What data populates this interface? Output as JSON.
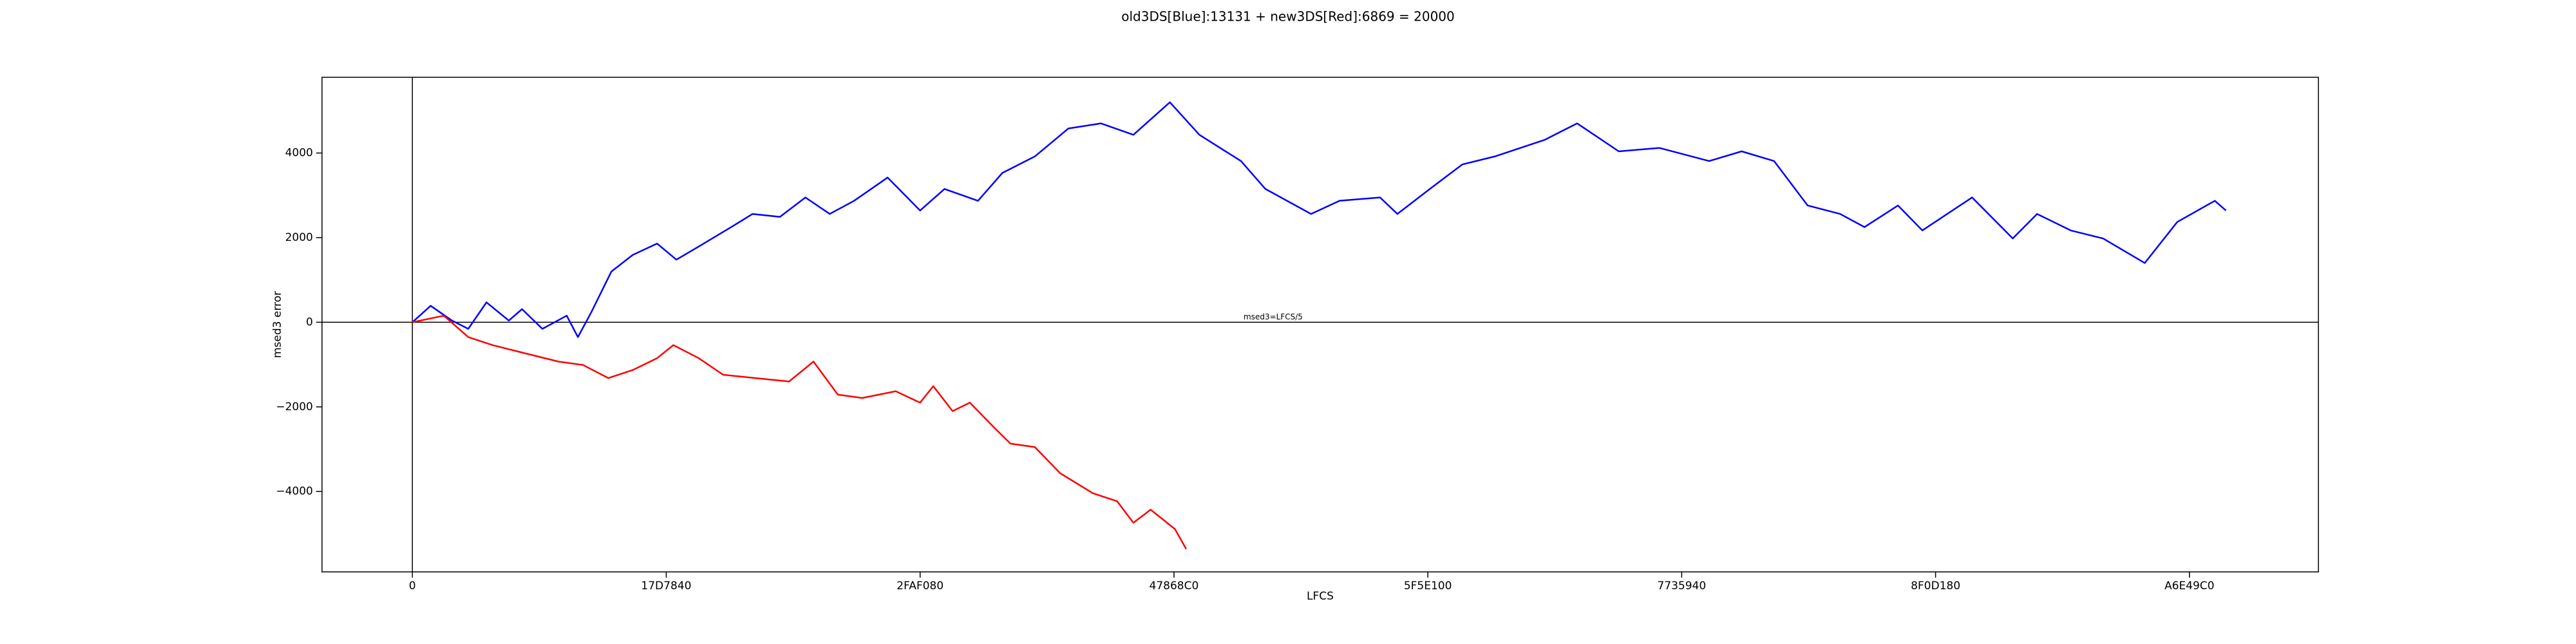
{
  "chart_data": {
    "type": "line",
    "title": "old3DS[Blue]:13131 + new3DS[Red]:6869 = 20000",
    "x_label": "LFCS",
    "y_label": "msed3 error",
    "annotation": "msed3=LFCS/5",
    "xlim": [
      -8900000,
      187700000
    ],
    "ylim": [
      -5900,
      5790
    ],
    "xticks": [
      0,
      {
        "value": 25000000,
        "label": "17D7840"
      },
      {
        "value": 50000000,
        "label": "2FAF080"
      },
      {
        "value": 75000000,
        "label": "47868C0"
      },
      {
        "value": 100000000,
        "label": "5F5E100"
      },
      {
        "value": 125000000,
        "label": "7735940"
      },
      {
        "value": 150000000,
        "label": "8F0D180"
      },
      {
        "value": 175000000,
        "label": "A6E49C0"
      }
    ],
    "yticks": [
      {
        "value": -4000,
        "label": "−4000"
      },
      {
        "value": -2000,
        "label": "−2000"
      },
      0,
      2000,
      4000
    ],
    "hlines": [
      0
    ],
    "vlines": [
      0
    ],
    "series": [
      {
        "color": "#0000ff",
        "x": [
          0,
          1800000,
          3900000,
          5500000,
          7300000,
          9500000,
          10800000,
          12800000,
          15200000,
          16300000,
          17600000,
          19600000,
          21700000,
          24100000,
          26000000,
          28200000,
          31400000,
          33500000,
          36200000,
          38700000,
          41100000,
          43500000,
          46800000,
          50000000,
          52400000,
          55700000,
          58100000,
          61300000,
          64600000,
          67800000,
          71000000,
          74600000,
          77500000,
          81600000,
          84000000,
          88500000,
          91300000,
          95300000,
          97000000,
          100200000,
          103400000,
          106600000,
          111500000,
          114700000,
          118800000,
          122800000,
          127700000,
          130900000,
          134100000,
          137400000,
          140600000,
          143000000,
          146300000,
          148700000,
          153600000,
          157600000,
          160000000,
          163300000,
          166500000,
          170600000,
          173800000,
          177500000,
          178600000
        ],
        "values": [
          0,
          390,
          40,
          -155,
          470,
          40,
          310,
          -155,
          155,
          -350,
          230,
          1200,
          1590,
          1860,
          1480,
          1790,
          2250,
          2560,
          2490,
          2950,
          2560,
          2870,
          3420,
          2640,
          3150,
          2870,
          3530,
          3920,
          4580,
          4700,
          4430,
          5200,
          4430,
          3810,
          3150,
          2560,
          2870,
          2950,
          2560,
          3150,
          3730,
          3920,
          4310,
          4700,
          4040,
          4120,
          3810,
          4040,
          3810,
          2760,
          2560,
          2250,
          2760,
          2170,
          2950,
          1980,
          2560,
          2170,
          1980,
          1400,
          2370,
          2870,
          2640
        ]
      },
      {
        "color": "#ff0000",
        "x": [
          0,
          3100000,
          5500000,
          7900000,
          11200000,
          14400000,
          16800000,
          19300000,
          21700000,
          24100000,
          25700000,
          28200000,
          30600000,
          33800000,
          37100000,
          39500000,
          41900000,
          44300000,
          47600000,
          50000000,
          51300000,
          53200000,
          54900000,
          57300000,
          58900000,
          61300000,
          63800000,
          67000000,
          69400000,
          71000000,
          72700000,
          75100000,
          76200000
        ],
        "values": [
          0,
          155,
          -350,
          -540,
          -740,
          -930,
          -1010,
          -1320,
          -1130,
          -850,
          -540,
          -850,
          -1240,
          -1320,
          -1400,
          -930,
          -1710,
          -1790,
          -1630,
          -1900,
          -1510,
          -2100,
          -1900,
          -2490,
          -2870,
          -2950,
          -3570,
          -4040,
          -4230,
          -4740,
          -4430,
          -4890,
          -5360
        ]
      }
    ]
  }
}
